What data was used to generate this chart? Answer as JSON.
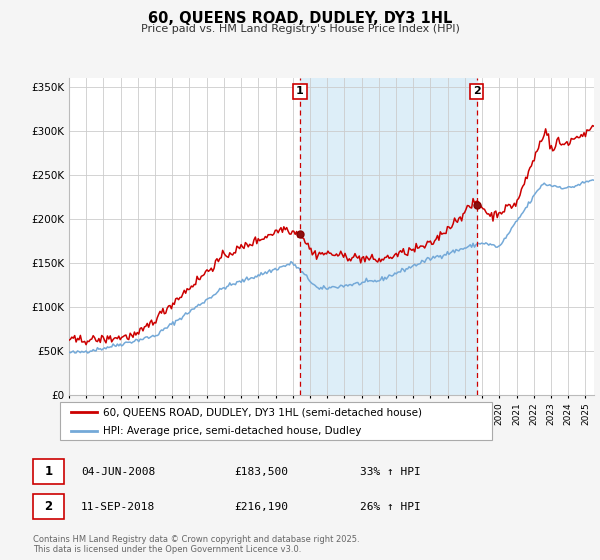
{
  "title": "60, QUEENS ROAD, DUDLEY, DY3 1HL",
  "subtitle": "Price paid vs. HM Land Registry's House Price Index (HPI)",
  "legend_line1": "60, QUEENS ROAD, DUDLEY, DY3 1HL (semi-detached house)",
  "legend_line2": "HPI: Average price, semi-detached house, Dudley",
  "red_color": "#cc0000",
  "blue_color": "#74a9d8",
  "bg_color": "#f5f5f5",
  "plot_bg": "#ffffff",
  "grid_color": "#cccccc",
  "span_color": "#ddeef8",
  "marker1_date": 2008.42,
  "marker2_date": 2018.69,
  "marker1_value": 183500,
  "marker2_value": 216190,
  "annotation1": "04-JUN-2008",
  "annotation1_price": "£183,500",
  "annotation1_hpi": "33% ↑ HPI",
  "annotation2": "11-SEP-2018",
  "annotation2_price": "£216,190",
  "annotation2_hpi": "26% ↑ HPI",
  "footer": "Contains HM Land Registry data © Crown copyright and database right 2025.\nThis data is licensed under the Open Government Licence v3.0.",
  "ylim": [
    0,
    360000
  ],
  "xlim_start": 1995,
  "xlim_end": 2025.5,
  "yticks": [
    0,
    50000,
    100000,
    150000,
    200000,
    250000,
    300000,
    350000
  ],
  "ytick_labels": [
    "£0",
    "£50K",
    "£100K",
    "£150K",
    "£200K",
    "£250K",
    "£300K",
    "£350K"
  ],
  "xticks": [
    1995,
    1996,
    1997,
    1998,
    1999,
    2000,
    2001,
    2002,
    2003,
    2004,
    2005,
    2006,
    2007,
    2008,
    2009,
    2010,
    2011,
    2012,
    2013,
    2014,
    2015,
    2016,
    2017,
    2018,
    2019,
    2020,
    2021,
    2022,
    2023,
    2024,
    2025
  ]
}
